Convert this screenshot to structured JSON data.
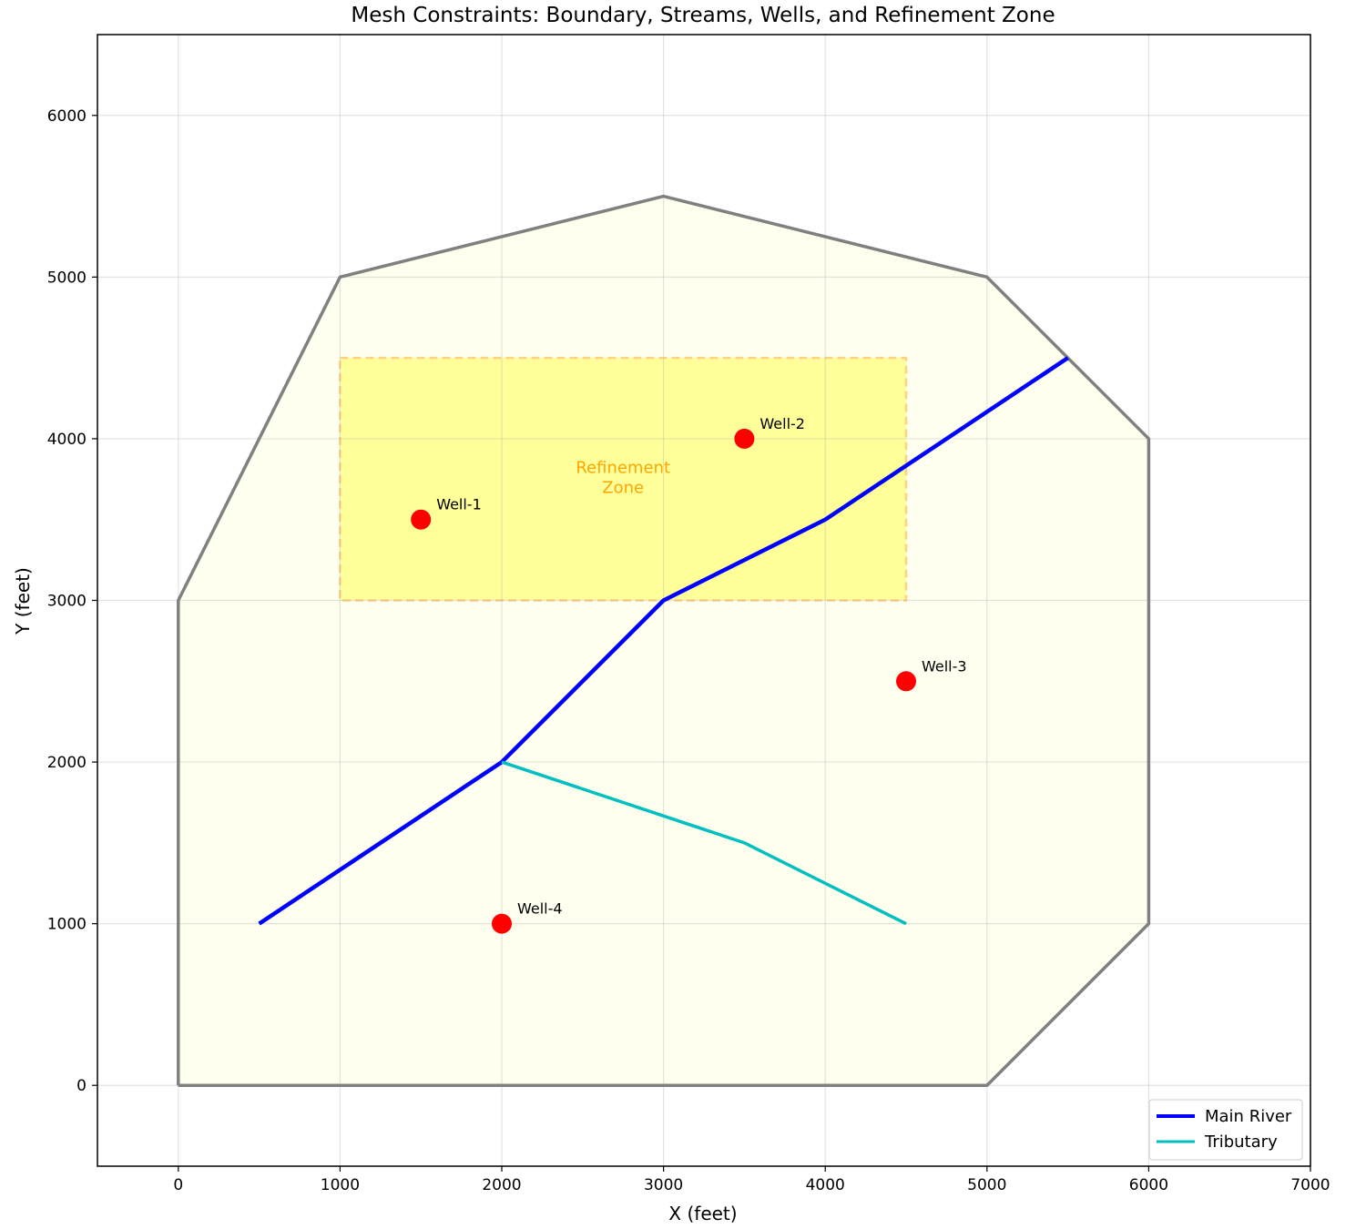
{
  "chart_data": {
    "type": "line",
    "title": "Mesh Constraints: Boundary, Streams, Wells, and Refinement Zone",
    "xlabel": "X (feet)",
    "ylabel": "Y (feet)",
    "xlim": [
      -500,
      7000
    ],
    "ylim": [
      -500,
      6500
    ],
    "xticks": [
      "0",
      "1000",
      "2000",
      "3000",
      "4000",
      "5000",
      "6000",
      "7000"
    ],
    "xtick_values": [
      0,
      1000,
      2000,
      3000,
      4000,
      5000,
      6000,
      7000
    ],
    "yticks": [
      "0",
      "1000",
      "2000",
      "3000",
      "4000",
      "5000",
      "6000"
    ],
    "ytick_values": [
      0,
      1000,
      2000,
      3000,
      4000,
      5000,
      6000
    ],
    "grid": true,
    "boundary": {
      "points": [
        [
          0,
          0
        ],
        [
          5000,
          0
        ],
        [
          6000,
          1000
        ],
        [
          6000,
          4000
        ],
        [
          5000,
          5000
        ],
        [
          3000,
          5500
        ],
        [
          1000,
          5000
        ],
        [
          0,
          3000
        ],
        [
          0,
          0
        ]
      ],
      "edge_color": "#808080",
      "fill_color": "#fffff0"
    },
    "refinement_zone": {
      "label_line1": "Refinement",
      "label_line2": "Zone",
      "label_pos": [
        2750,
        3750
      ],
      "x": [
        1000,
        4500
      ],
      "y": [
        3000,
        4500
      ],
      "fill_color": "#ffff99",
      "edge_color": "#ffd27f",
      "text_color": "#ffa500"
    },
    "series": [
      {
        "name": "Main River",
        "color": "#0000ff",
        "points": [
          [
            500,
            1000
          ],
          [
            2000,
            2000
          ],
          [
            3000,
            3000
          ],
          [
            4000,
            3500
          ],
          [
            5500,
            4500
          ]
        ]
      },
      {
        "name": "Tributary",
        "color": "#00bfbf",
        "points": [
          [
            2000,
            2000
          ],
          [
            3500,
            1500
          ],
          [
            4500,
            1000
          ]
        ]
      }
    ],
    "wells": [
      {
        "name": "Well-1",
        "x": 1500,
        "y": 3500
      },
      {
        "name": "Well-2",
        "x": 3500,
        "y": 4000
      },
      {
        "name": "Well-3",
        "x": 4500,
        "y": 2500
      },
      {
        "name": "Well-4",
        "x": 2000,
        "y": 1000
      }
    ],
    "well_color": "#ff0000",
    "legend_position": "lower-right"
  }
}
